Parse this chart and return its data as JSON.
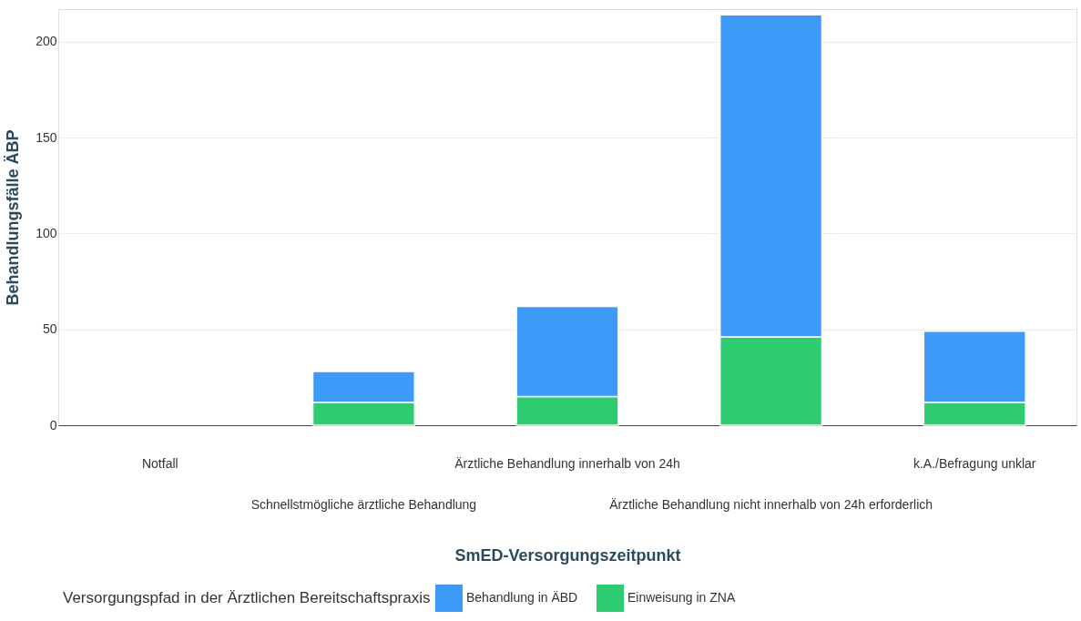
{
  "chart_data": {
    "type": "bar",
    "stacked": true,
    "xlabel": "SmED-Versorgungszeitpunkt",
    "ylabel": "Behandlungsfälle ÄBP",
    "legend_title": "Versorgungspfad in der Ärztlichen Bereitschaftspraxis",
    "categories": [
      "Notfall",
      "Schnellstmögliche ärztliche Behandlung",
      "Ärztliche Behandlung innerhalb von 24h",
      "Ärztliche Behandlung nicht innerhalb von 24h erforderlich",
      "k.A./Befragung unklar"
    ],
    "series": [
      {
        "name": "Einweisung in ZNA",
        "color": "#2ecc71",
        "values": [
          0,
          12,
          15,
          46,
          12
        ]
      },
      {
        "name": "Behandlung in ÄBD",
        "color": "#3d9af9",
        "values": [
          0,
          16,
          47,
          168,
          37
        ]
      }
    ],
    "ylim": [
      0,
      217
    ],
    "yticks": [
      0,
      50,
      100,
      150,
      200
    ],
    "grid": "y",
    "legend": "bottom"
  }
}
